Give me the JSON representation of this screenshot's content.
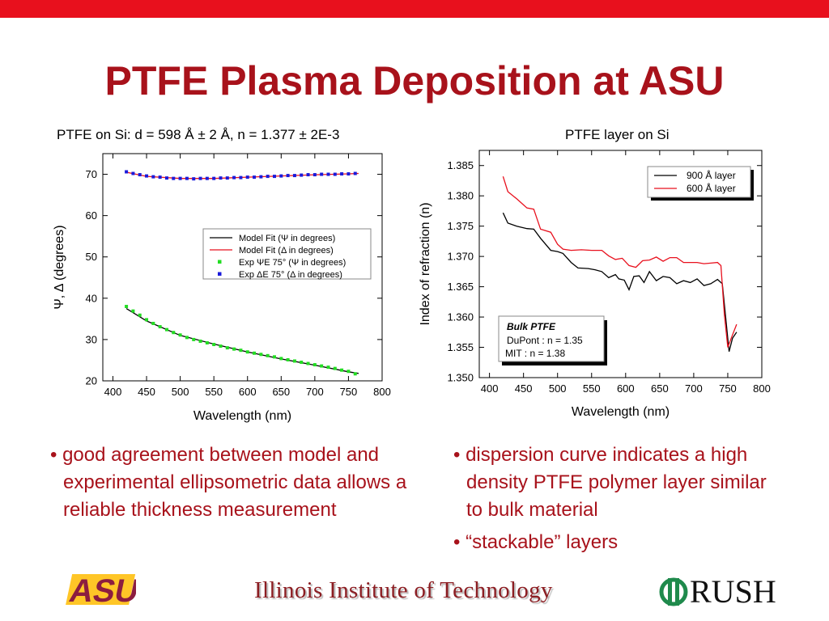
{
  "slide": {
    "title": "PTFE Plasma Deposition at ASU",
    "bullets_left": [
      "good agreement between model and experimental ellipsometric data allows a reliable thickness measurement"
    ],
    "bullets_right": [
      "dispersion curve indicates a high density PTFE polymer layer similar to bulk material",
      "“stackable” layers"
    ],
    "logos": {
      "left": "ASU",
      "center": "Illinois Institute of Technology",
      "right": "RUSH"
    },
    "colors": {
      "accent_bar": "#e8101d",
      "title": "#a8121b",
      "iit": "#8c1d22",
      "rush_green": "#1f8a4c"
    }
  },
  "chart_data": [
    {
      "type": "line",
      "title": "PTFE on Si: d = 598 Å ± 2 Å, n = 1.377 ± 2E-3",
      "xlabel": "Wavelength (nm)",
      "ylabel": "Ψ, Δ (degrees)",
      "xlim": [
        385,
        800
      ],
      "ylim": [
        20,
        75
      ],
      "xticks": [
        400,
        450,
        500,
        550,
        600,
        650,
        700,
        750,
        800
      ],
      "yticks": [
        20,
        30,
        40,
        50,
        60,
        70
      ],
      "legend_position": "center-right",
      "grid": false,
      "series": [
        {
          "name": "Model Fit  (Ψ in degrees)",
          "kind": "line",
          "color": "#000000",
          "x": [
            420,
            450,
            500,
            550,
            600,
            650,
            700,
            750,
            765
          ],
          "y": [
            37.5,
            34.5,
            31.0,
            28.9,
            27.0,
            25.3,
            23.8,
            22.2,
            21.8
          ]
        },
        {
          "name": "Model Fit  (Δ in degrees)",
          "kind": "line",
          "color": "#e8101d",
          "x": [
            420,
            450,
            500,
            550,
            600,
            650,
            700,
            750,
            765
          ],
          "y": [
            70.5,
            69.5,
            69.0,
            69.0,
            69.3,
            69.6,
            69.9,
            70.1,
            70.2
          ]
        },
        {
          "name": "Exp ΨE 75°  (Ψ in degrees)",
          "kind": "points",
          "color": "#22dd22",
          "x": [
            420,
            430,
            440,
            450,
            460,
            470,
            480,
            490,
            500,
            510,
            520,
            530,
            540,
            550,
            560,
            570,
            580,
            590,
            600,
            610,
            620,
            630,
            640,
            650,
            660,
            670,
            680,
            690,
            700,
            710,
            720,
            730,
            740,
            750,
            760
          ],
          "y": [
            38.0,
            36.9,
            35.9,
            34.8,
            33.9,
            33.1,
            32.4,
            31.7,
            31.1,
            30.5,
            30.0,
            29.6,
            29.2,
            28.8,
            28.4,
            28.0,
            27.7,
            27.4,
            27.0,
            26.7,
            26.4,
            26.1,
            25.8,
            25.4,
            25.1,
            24.8,
            24.5,
            24.2,
            23.9,
            23.6,
            23.3,
            23.0,
            22.6,
            22.3,
            21.7
          ]
        },
        {
          "name": "Exp ΔE 75°  (Δ in degrees)",
          "kind": "points",
          "color": "#1a1adb",
          "x": [
            420,
            430,
            440,
            450,
            460,
            470,
            480,
            490,
            500,
            510,
            520,
            530,
            540,
            550,
            560,
            570,
            580,
            590,
            600,
            610,
            620,
            630,
            640,
            650,
            660,
            670,
            680,
            690,
            700,
            710,
            720,
            730,
            740,
            750,
            760
          ],
          "y": [
            70.6,
            70.2,
            69.9,
            69.6,
            69.4,
            69.3,
            69.1,
            69.0,
            69.0,
            69.0,
            68.9,
            69.0,
            69.0,
            69.0,
            69.1,
            69.1,
            69.2,
            69.2,
            69.3,
            69.3,
            69.4,
            69.5,
            69.5,
            69.6,
            69.7,
            69.7,
            69.8,
            69.9,
            69.9,
            70.0,
            70.0,
            70.0,
            70.1,
            70.1,
            70.2
          ]
        }
      ]
    },
    {
      "type": "line",
      "title": "PTFE layer on Si",
      "xlabel": "Wavelength (nm)",
      "ylabel": "Index of refraction (n)",
      "xlim": [
        385,
        800
      ],
      "ylim": [
        1.35,
        1.3875
      ],
      "xticks": [
        400,
        450,
        500,
        550,
        600,
        650,
        700,
        750,
        800
      ],
      "yticks": [
        "1.350",
        "1.355",
        "1.360",
        "1.365",
        "1.370",
        "1.375",
        "1.380",
        "1.385"
      ],
      "legend_position": "top-right",
      "grid": false,
      "annotation": {
        "title": "Bulk PTFE",
        "lines": [
          "DuPont : n = 1.35",
          "MIT : n = 1.38"
        ]
      },
      "series": [
        {
          "name": "900 Å layer",
          "color": "#000000",
          "x": [
            420,
            427,
            440,
            455,
            465,
            475,
            490,
            500,
            508,
            520,
            530,
            545,
            555,
            565,
            575,
            585,
            590,
            598,
            605,
            612,
            620,
            627,
            635,
            645,
            655,
            665,
            675,
            685,
            695,
            705,
            715,
            725,
            735,
            742,
            747,
            752,
            757,
            763
          ],
          "y": [
            1.3772,
            1.3755,
            1.375,
            1.3746,
            1.3745,
            1.373,
            1.371,
            1.3708,
            1.3705,
            1.369,
            1.3681,
            1.368,
            1.3678,
            1.3675,
            1.3665,
            1.367,
            1.3663,
            1.3661,
            1.3645,
            1.3667,
            1.3668,
            1.3657,
            1.3675,
            1.366,
            1.3667,
            1.3665,
            1.3655,
            1.366,
            1.3657,
            1.3663,
            1.3652,
            1.3655,
            1.3662,
            1.3655,
            1.3599,
            1.3543,
            1.3565,
            1.3575
          ]
        },
        {
          "name": "600 Å layer",
          "color": "#e8101d",
          "x": [
            420,
            427,
            440,
            455,
            465,
            475,
            490,
            500,
            508,
            520,
            535,
            550,
            565,
            575,
            585,
            595,
            605,
            615,
            625,
            635,
            645,
            655,
            665,
            675,
            685,
            695,
            705,
            715,
            725,
            735,
            740,
            745,
            750,
            755,
            763
          ],
          "y": [
            1.3832,
            1.3807,
            1.3795,
            1.378,
            1.3778,
            1.3745,
            1.374,
            1.372,
            1.3712,
            1.371,
            1.3711,
            1.371,
            1.371,
            1.3701,
            1.3695,
            1.3697,
            1.3685,
            1.3682,
            1.3693,
            1.3694,
            1.3699,
            1.3692,
            1.3698,
            1.3698,
            1.369,
            1.369,
            1.369,
            1.3688,
            1.3689,
            1.369,
            1.3685,
            1.3605,
            1.355,
            1.3565,
            1.3588
          ]
        }
      ]
    }
  ]
}
